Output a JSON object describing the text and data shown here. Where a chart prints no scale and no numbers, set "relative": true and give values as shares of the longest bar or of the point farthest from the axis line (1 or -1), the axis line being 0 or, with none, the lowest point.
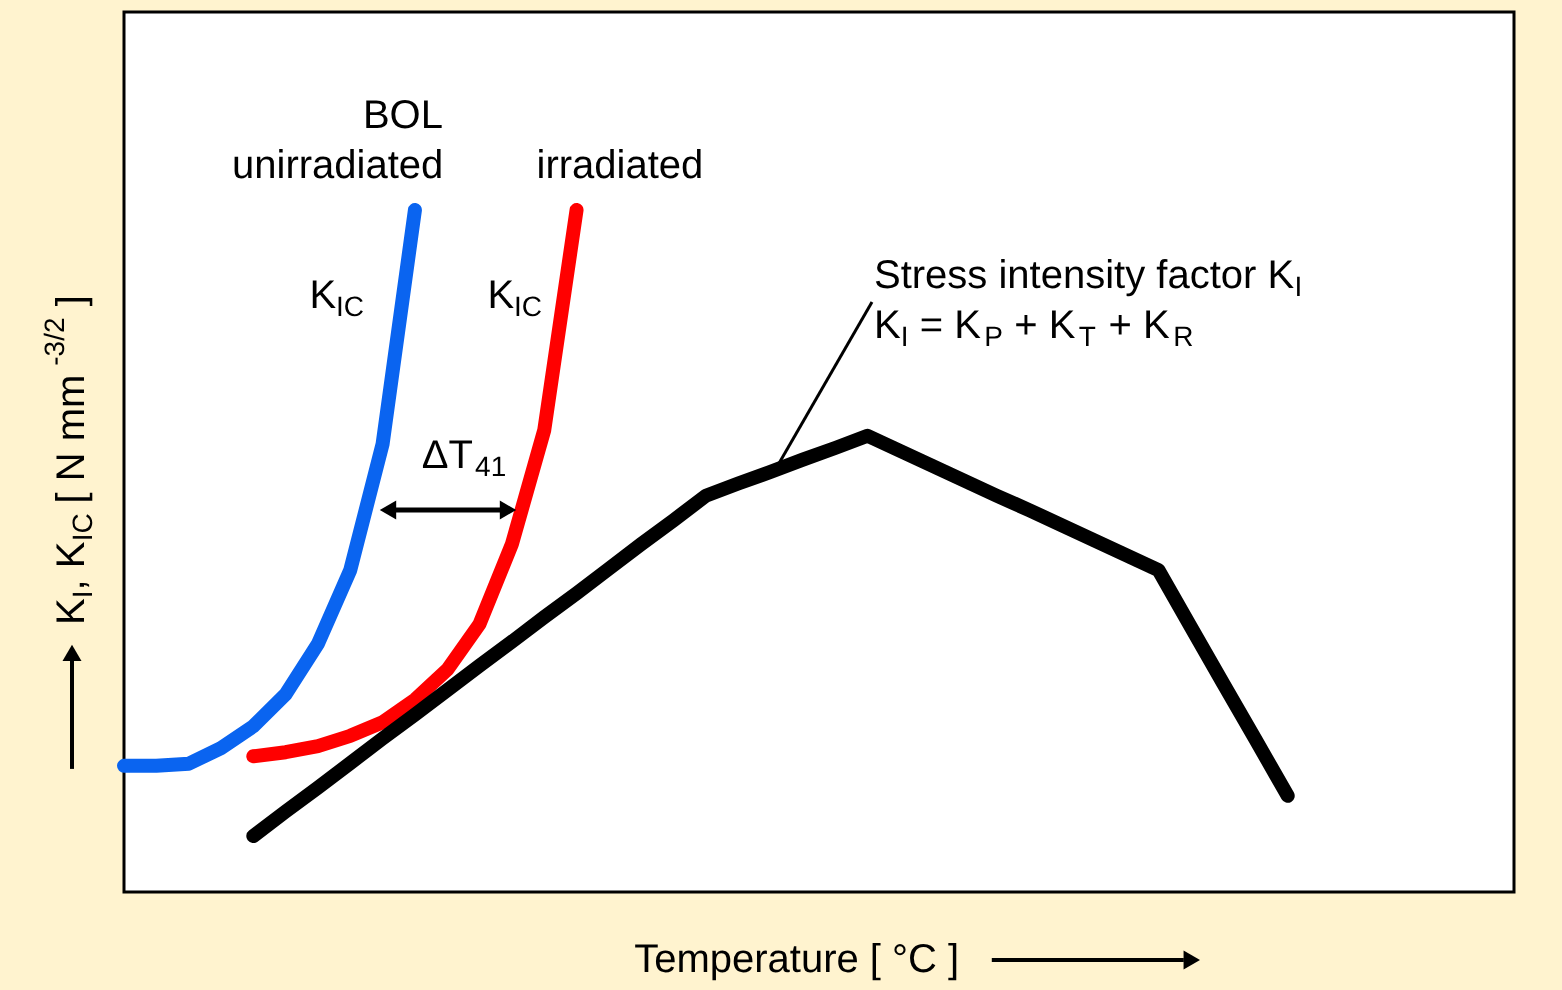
{
  "chart_data": {
    "type": "line",
    "relative": true,
    "xlabel": "Temperature [ °C ]",
    "ylabel": "K$_{I}$, K$_{IC}$ [ N mm $^{-3/2}$ ]",
    "legend": false,
    "grid": false,
    "marker": "none",
    "line_style": "solid",
    "categories": [
      null,
      null,
      null,
      null,
      null,
      null,
      null,
      null,
      null,
      null,
      null,
      null,
      null,
      null,
      null,
      null,
      null,
      null,
      null,
      null,
      null,
      null,
      null,
      null,
      null,
      null,
      null,
      null,
      null,
      null,
      null,
      null,
      null,
      null,
      null,
      null,
      null,
      null,
      null,
      null,
      null,
      null,
      null,
      null
    ],
    "series": [
      {
        "name": "BOL\nunirradiated",
        "color": "#0a64f0",
        "values": [
          0.185,
          0.185,
          0.188,
          0.211,
          0.243,
          0.29,
          0.364,
          0.472,
          0.657,
          1.0,
          null,
          null,
          null,
          null,
          null,
          null,
          null,
          null,
          null,
          null,
          null,
          null,
          null,
          null,
          null,
          null,
          null,
          null,
          null,
          null,
          null,
          null,
          null,
          null,
          null,
          null,
          null,
          null,
          null,
          null,
          null,
          null,
          null,
          null
        ]
      },
      {
        "name": "irradiated",
        "color": "#ff0000",
        "values": [
          null,
          null,
          null,
          null,
          0.199,
          0.205,
          0.214,
          0.229,
          0.249,
          0.282,
          0.326,
          0.393,
          0.51,
          0.677,
          1.0,
          null,
          null,
          null,
          null,
          null,
          null,
          null,
          null,
          null,
          null,
          null,
          null,
          null,
          null,
          null,
          null,
          null,
          null,
          null,
          null,
          null,
          null,
          null,
          null,
          null,
          null,
          null,
          null,
          null
        ]
      },
      {
        "color": "#000000",
        "values": [
          null,
          null,
          null,
          null,
          0.082,
          0.118,
          0.153,
          0.189,
          0.225,
          0.26,
          0.296,
          0.332,
          0.367,
          0.403,
          0.438,
          0.474,
          0.51,
          0.545,
          0.581,
          0.599,
          0.616,
          0.634,
          0.651,
          0.669,
          0.647,
          0.625,
          0.603,
          0.581,
          0.56,
          0.538,
          0.516,
          0.494,
          0.472,
          0.389,
          0.306,
          0.224,
          0.141,
          null,
          null,
          null,
          null,
          null,
          null,
          null
        ]
      }
    ],
    "annotations": [
      "K$_{IC}$",
      "K$_{IC}$",
      "Stress intensity factor K$_{I}$\nK$_{I}$ = K$_{P}$ + K$_{T}$ + K$_{R}$",
      "ΔT$_{41}$"
    ]
  }
}
